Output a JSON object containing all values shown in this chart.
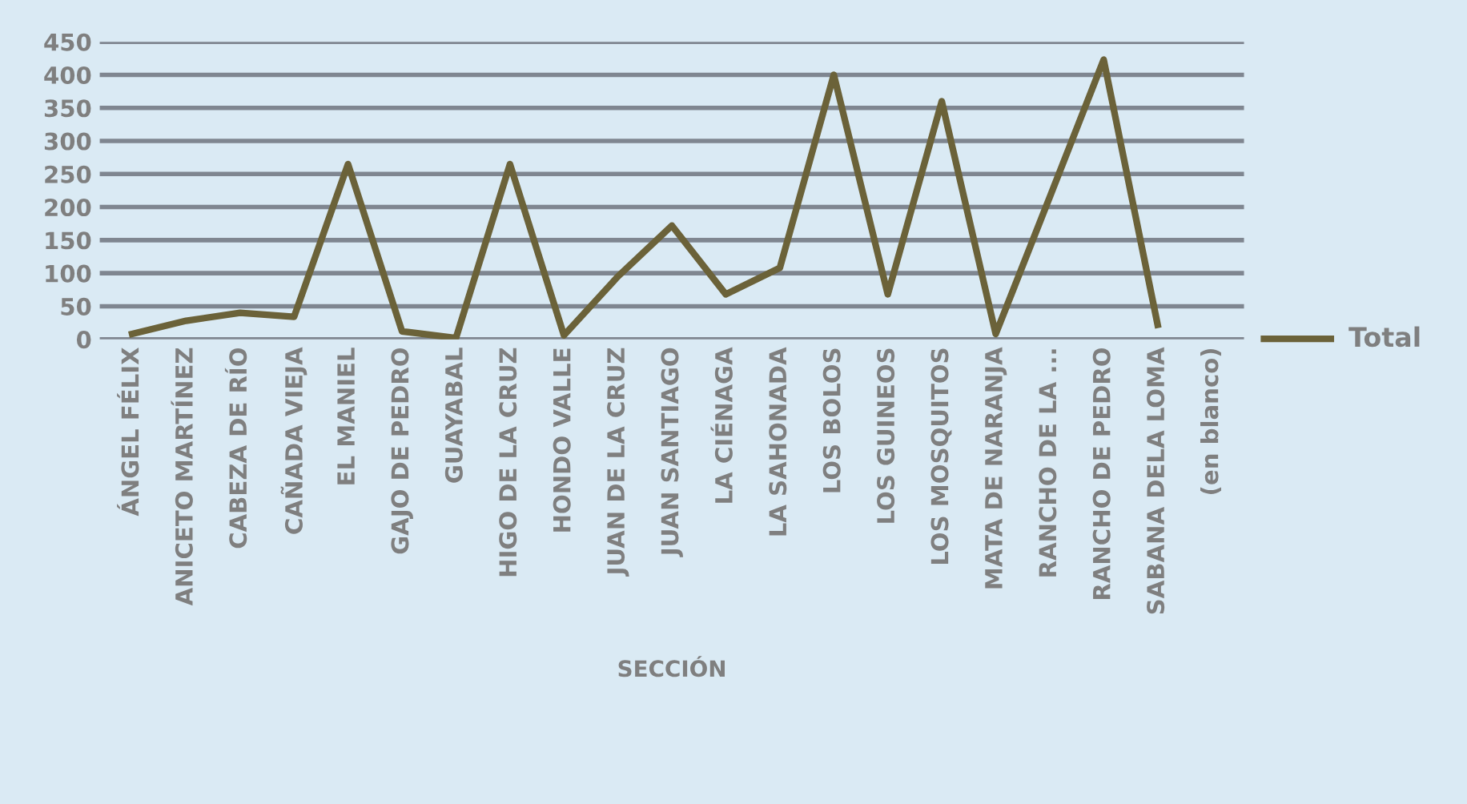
{
  "chart_data": {
    "type": "line",
    "xlabel": "SECCIÓN",
    "categories": [
      "ÁNGEL FÉLIX",
      "ANICETO MARTÍNEZ",
      "CABEZA DE RÍO",
      "CAÑADA VIEJA",
      "EL MANIEL",
      "GAJO DE PEDRO",
      "GUAYABAL",
      "HIGO DE LA CRUZ",
      "HONDO VALLE",
      "JUAN DE LA CRUZ",
      "JUAN SANTIAGO",
      "LA CIÉNAGA",
      "LA SAHONADA",
      "LOS BOLOS",
      "LOS GUINEOS",
      "LOS MOSQUITOS",
      "MATA DE NARANJA",
      "RANCHO DE LA ...",
      "RANCHO DE PEDRO",
      "SABANA DELA LOMA",
      "(en blanco)"
    ],
    "series": [
      {
        "name": "Total",
        "color": "#6b6239",
        "values": [
          8,
          28,
          40,
          34,
          265,
          12,
          2,
          265,
          6,
          95,
          172,
          68,
          108,
          400,
          68,
          360,
          8,
          215,
          423,
          22,
          null
        ]
      }
    ],
    "ylim": [
      0,
      450
    ],
    "yticks": [
      0,
      50,
      100,
      150,
      200,
      250,
      300,
      350,
      400,
      450
    ],
    "grid": "y",
    "legend": "right",
    "marker": "none",
    "line_style": "solid"
  }
}
